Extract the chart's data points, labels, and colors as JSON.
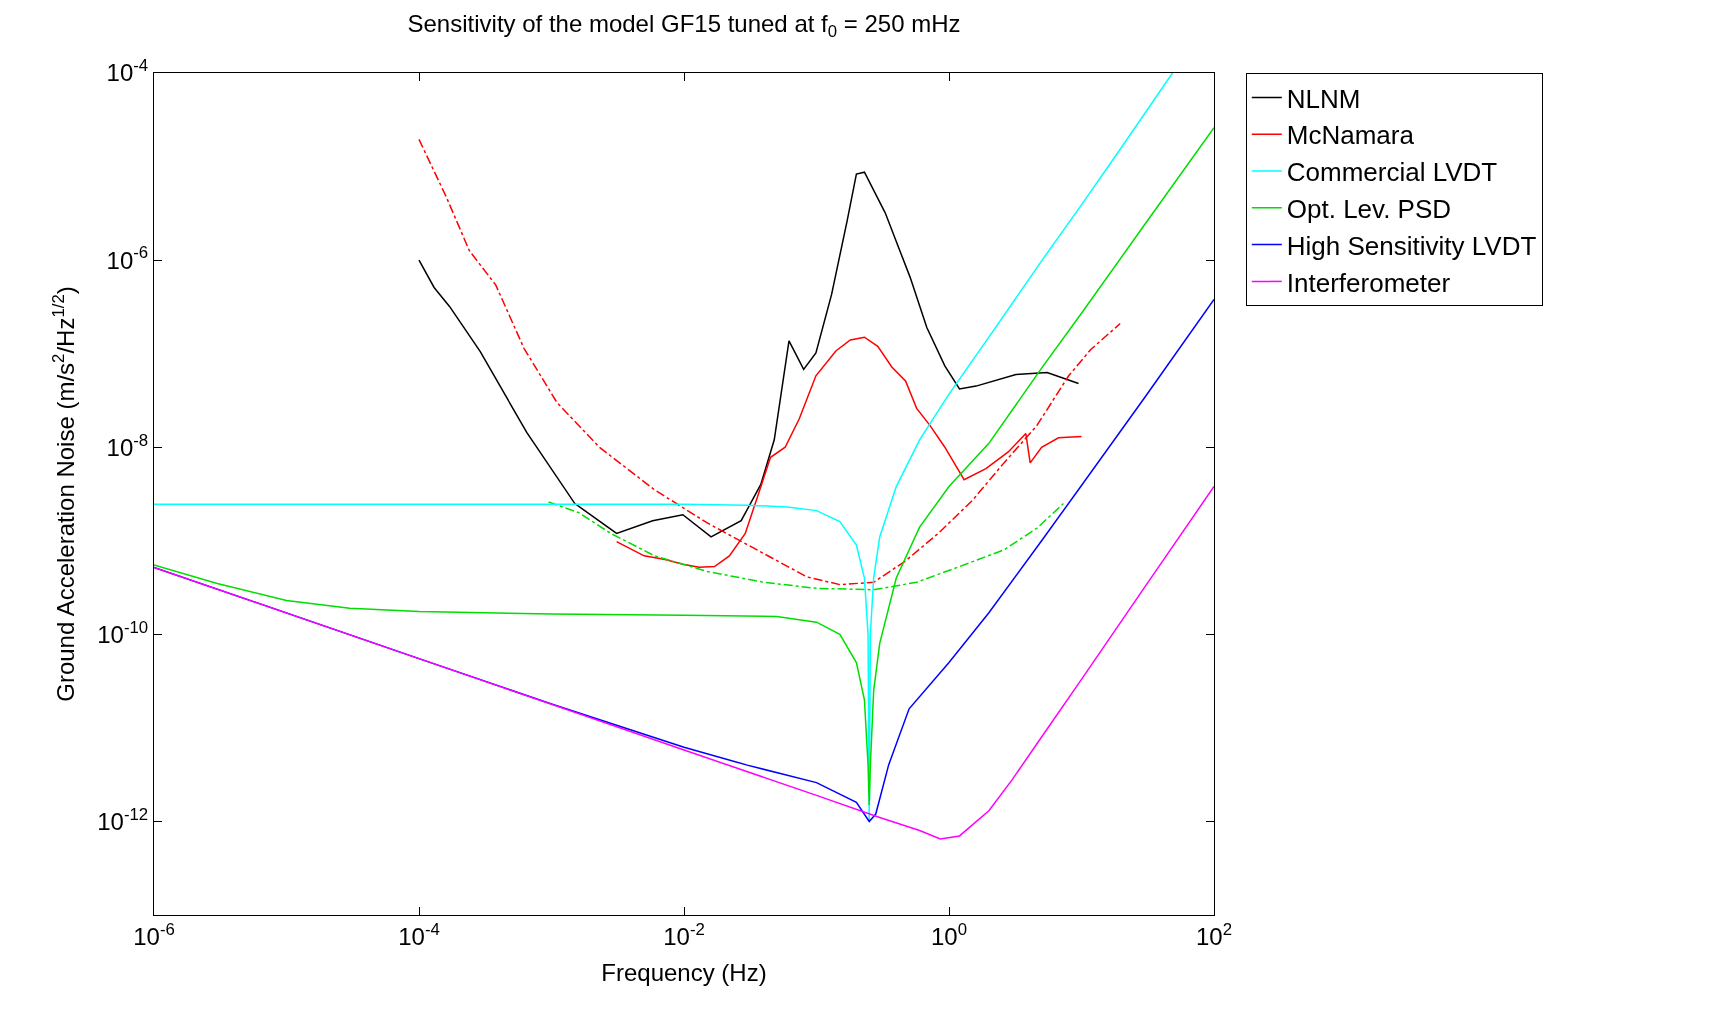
{
  "chart_data": {
    "type": "line",
    "title": "Sensitivity of the model GF15 tuned at f$_{0}$ = 250 mHz",
    "xlabel": "Frequency (Hz)",
    "ylabel": "Ground Acceleration Noise (m/s$^{2}$/Hz$^{1/2}$)",
    "log": "xy",
    "legend": "top right",
    "marker": "none",
    "xlim": [
      1e-06,
      100
    ],
    "ylim": [
      1e-13,
      0.0001
    ],
    "xticks": [
      {
        "value": 1e-06,
        "label": "10$^{-6}$"
      },
      {
        "value": 0.0001,
        "label": "10$^{-4}$"
      },
      {
        "value": 0.01,
        "label": "10$^{-2}$"
      },
      {
        "value": 1,
        "label": "10$^{0}$"
      },
      {
        "value": 100,
        "label": "10$^{2}$"
      }
    ],
    "yticks": [
      {
        "value": 1e-12,
        "label": "10$^{-12}$"
      },
      {
        "value": 1e-10,
        "label": "10$^{-10}$"
      },
      {
        "value": 1e-08,
        "label": "10$^{-8}$"
      },
      {
        "value": 1e-06,
        "label": "10$^{-6}$"
      },
      {
        "value": 0.0001,
        "label": "10$^{-4}$"
      }
    ],
    "series": [
      {
        "name": "NLNM",
        "color": "#000000",
        "line_style": "solid",
        "x": [
          0.0001,
          0.00013,
          0.00017,
          0.00029,
          0.00065,
          0.0015,
          0.0031,
          0.0058,
          0.0098,
          0.016,
          0.027,
          0.038,
          0.048,
          0.062,
          0.08,
          0.099,
          0.13,
          0.17,
          0.2,
          0.23,
          0.33,
          0.51,
          0.68,
          0.93,
          1.2,
          1.6,
          3.2,
          5.5,
          9.5
        ],
        "values": [
          1e-06,
          5.1e-07,
          3.2e-07,
          1.05e-07,
          1.44e-08,
          2.5e-09,
          1.2e-09,
          1.64e-09,
          1.9e-09,
          1.1e-09,
          1.64e-09,
          4e-09,
          1.2e-08,
          1.37e-07,
          6.8e-08,
          1.02e-07,
          4.3e-07,
          2.6e-06,
          8.3e-06,
          8.7e-06,
          3.2e-06,
          6.5e-07,
          1.9e-07,
          7.4e-08,
          4.2e-08,
          4.5e-08,
          6e-08,
          6.3e-08,
          4.8e-08
        ]
      },
      {
        "name": "McNamara",
        "color": "#ff0000",
        "line_style": "solid",
        "x": [
          0.0031,
          0.005,
          0.0072,
          0.0098,
          0.013,
          0.017,
          0.022,
          0.029,
          0.036,
          0.045,
          0.058,
          0.074,
          0.099,
          0.14,
          0.18,
          0.23,
          0.29,
          0.37,
          0.47,
          0.57,
          0.72,
          0.93,
          1.3,
          1.9,
          2.8,
          3.8,
          4.1,
          5.0,
          6.7,
          10
        ],
        "values": [
          9.8e-10,
          6.9e-10,
          6.3e-10,
          5.6e-10,
          5.2e-10,
          5.3e-10,
          6.9e-10,
          1.2e-09,
          3e-09,
          7.8e-09,
          1e-08,
          2e-08,
          5.8e-08,
          1.07e-07,
          1.4e-07,
          1.5e-07,
          1.2e-07,
          7.2e-08,
          5.1e-08,
          2.6e-08,
          1.7e-08,
          1e-08,
          4.5e-09,
          5.9e-09,
          8.9e-09,
          1.4e-08,
          6.8e-09,
          1e-08,
          1.26e-08,
          1.3e-08
        ]
      },
      {
        "color": "#ff0000",
        "line_style": "dashdot",
        "x": [
          0.0001,
          0.00016,
          0.00024,
          0.00038,
          0.00062,
          0.0011,
          0.0023,
          0.006,
          0.015,
          0.04,
          0.085,
          0.15,
          0.27,
          0.47,
          0.83,
          1.5,
          2.6,
          4.6,
          8.0,
          11.7,
          19.6
        ],
        "values": [
          1.95e-05,
          4.8e-06,
          1.26e-06,
          5.4e-07,
          1.14e-07,
          3e-08,
          1e-08,
          3.5e-09,
          1.55e-09,
          7.3e-10,
          4.1e-10,
          3.4e-10,
          3.6e-10,
          6.1e-10,
          1.2e-09,
          2.7e-09,
          6.8e-09,
          1.7e-08,
          5.8e-08,
          1.1e-07,
          2.1e-07
        ]
      },
      {
        "color": "#00dd00",
        "line_style": "dashdot",
        "x": [
          0.00095,
          0.0016,
          0.0028,
          0.006,
          0.015,
          0.04,
          0.1,
          0.27,
          0.57,
          1.2,
          2.6,
          4.6,
          7.3
        ],
        "values": [
          2.6e-09,
          2e-09,
          1.2e-09,
          6.9e-10,
          4.7e-10,
          3.6e-10,
          3.1e-10,
          3e-10,
          3.6e-10,
          5.3e-10,
          8e-10,
          1.36e-09,
          2.5e-09
        ]
      },
      {
        "name": "Commercial LVDT",
        "color": "#00ffff",
        "line_style": "solid",
        "x": [
          1e-06,
          0.001,
          0.01,
          0.03,
          0.06,
          0.1,
          0.15,
          0.2,
          0.23,
          0.245,
          0.25,
          0.255,
          0.27,
          0.3,
          0.4,
          0.6,
          1,
          2,
          5,
          10,
          20,
          48.6
        ],
        "values": [
          2.45e-09,
          2.45e-09,
          2.45e-09,
          2.4e-09,
          2.3e-09,
          2.1e-09,
          1.6e-09,
          9e-10,
          4e-10,
          1e-10,
          1e-12,
          1e-10,
          4e-10,
          1.1e-09,
          3.8e-09,
          1.2e-08,
          3.7e-08,
          1.5e-07,
          9.8e-07,
          3.9e-06,
          1.6e-05,
          0.0001
        ]
      },
      {
        "name": "Opt. Lev. PSD",
        "color": "#00dd00",
        "line_style": "solid",
        "x": [
          1e-06,
          3e-06,
          1e-05,
          3e-05,
          0.0001,
          0.001,
          0.01,
          0.05,
          0.1,
          0.15,
          0.2,
          0.23,
          0.245,
          0.25,
          0.255,
          0.27,
          0.3,
          0.4,
          0.6,
          1,
          2,
          5,
          10,
          30,
          100
        ],
        "values": [
          5.5e-10,
          3.5e-10,
          2.3e-10,
          1.9e-10,
          1.75e-10,
          1.65e-10,
          1.6e-10,
          1.55e-10,
          1.35e-10,
          1e-10,
          5e-11,
          2e-11,
          4e-12,
          1.5e-12,
          4e-12,
          2.5e-11,
          8e-11,
          4e-10,
          1.4e-09,
          3.8e-09,
          1.1e-08,
          7e-08,
          2.7e-07,
          2.4e-06,
          2.6e-05
        ]
      },
      {
        "name": "High Sensitivity LVDT",
        "color": "#0000ff",
        "line_style": "solid",
        "x": [
          1e-06,
          0.0001,
          0.001,
          0.01,
          0.03,
          0.1,
          0.2,
          0.25,
          0.28,
          0.35,
          0.5,
          1,
          2,
          5,
          10,
          30,
          100
        ],
        "values": [
          5.2e-10,
          5.5e-11,
          1.8e-11,
          6.2e-12,
          4e-12,
          2.6e-12,
          1.6e-12,
          1e-12,
          1.2e-12,
          4e-12,
          1.6e-11,
          5e-11,
          1.7e-10,
          1e-09,
          3.9e-09,
          3.4e-08,
          3.8e-07
        ]
      },
      {
        "name": "Interferometer",
        "color": "#ff00ff",
        "line_style": "solid",
        "x": [
          1e-06,
          0.0001,
          0.01,
          0.1,
          0.3,
          0.6,
          0.86,
          1.2,
          2,
          3,
          5,
          10,
          30,
          100
        ],
        "values": [
          5.2e-10,
          5.5e-11,
          5.8e-12,
          1.9e-12,
          1.1e-12,
          8e-13,
          6.5e-13,
          7e-13,
          1.3e-12,
          2.8e-12,
          8e-12,
          3.3e-11,
          3.2e-10,
          3.8e-09
        ]
      }
    ]
  }
}
